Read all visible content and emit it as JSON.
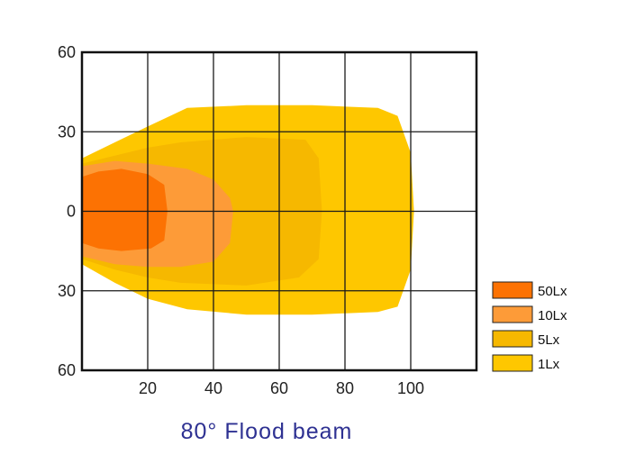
{
  "chart_data": {
    "type": "area",
    "title": "80°  Flood beam",
    "x_ticks": [
      "20",
      "40",
      "60",
      "80",
      "100"
    ],
    "x_tick_values": [
      20,
      40,
      60,
      80,
      100
    ],
    "y_ticks": [
      "60",
      "30",
      "0",
      "30",
      "60"
    ],
    "y_tick_values": [
      60,
      30,
      0,
      -30,
      -60
    ],
    "xlim": [
      0,
      120
    ],
    "ylim": [
      -60,
      60
    ],
    "grid": true,
    "legend_position": "bottom-right",
    "series": [
      {
        "name": "1Lx",
        "color": "#fec700",
        "outline": [
          [
            0,
            20
          ],
          [
            10,
            26
          ],
          [
            20,
            32
          ],
          [
            32,
            39
          ],
          [
            50,
            40
          ],
          [
            70,
            40
          ],
          [
            90,
            39
          ],
          [
            96,
            36
          ],
          [
            100,
            22
          ],
          [
            101,
            0
          ],
          [
            100,
            -22
          ],
          [
            96,
            -36
          ],
          [
            90,
            -38
          ],
          [
            70,
            -39
          ],
          [
            50,
            -39
          ],
          [
            32,
            -37
          ],
          [
            20,
            -33
          ],
          [
            10,
            -27
          ],
          [
            0,
            -20
          ]
        ]
      },
      {
        "name": "5Lx",
        "color": "#f6b800",
        "outline": [
          [
            0,
            18
          ],
          [
            10,
            21
          ],
          [
            20,
            24
          ],
          [
            30,
            26
          ],
          [
            50,
            28
          ],
          [
            68,
            27
          ],
          [
            72,
            20
          ],
          [
            73,
            0
          ],
          [
            72,
            -18
          ],
          [
            66,
            -25
          ],
          [
            50,
            -28
          ],
          [
            30,
            -27
          ],
          [
            20,
            -25
          ],
          [
            10,
            -22
          ],
          [
            0,
            -18
          ]
        ]
      },
      {
        "name": "10Lx",
        "color": "#fd9b38",
        "outline": [
          [
            0,
            17
          ],
          [
            10,
            19
          ],
          [
            20,
            18
          ],
          [
            32,
            16
          ],
          [
            40,
            12
          ],
          [
            45,
            5
          ],
          [
            46,
            0
          ],
          [
            45,
            -12
          ],
          [
            40,
            -19
          ],
          [
            30,
            -21
          ],
          [
            20,
            -21
          ],
          [
            10,
            -20
          ],
          [
            0,
            -17
          ]
        ]
      },
      {
        "name": "50Lx",
        "color": "#fc7203",
        "outline": [
          [
            0,
            13
          ],
          [
            5,
            15
          ],
          [
            12,
            16
          ],
          [
            20,
            14
          ],
          [
            25,
            10
          ],
          [
            26,
            0
          ],
          [
            25,
            -11
          ],
          [
            21,
            -14
          ],
          [
            12,
            -15
          ],
          [
            5,
            -14
          ],
          [
            0,
            -12
          ]
        ]
      }
    ],
    "legend": [
      {
        "label": "50Lx",
        "color": "#fc7203"
      },
      {
        "label": "10Lx",
        "color": "#fd9b38"
      },
      {
        "label": "5Lx",
        "color": "#f6b800"
      },
      {
        "label": "1Lx",
        "color": "#fec700"
      }
    ]
  }
}
